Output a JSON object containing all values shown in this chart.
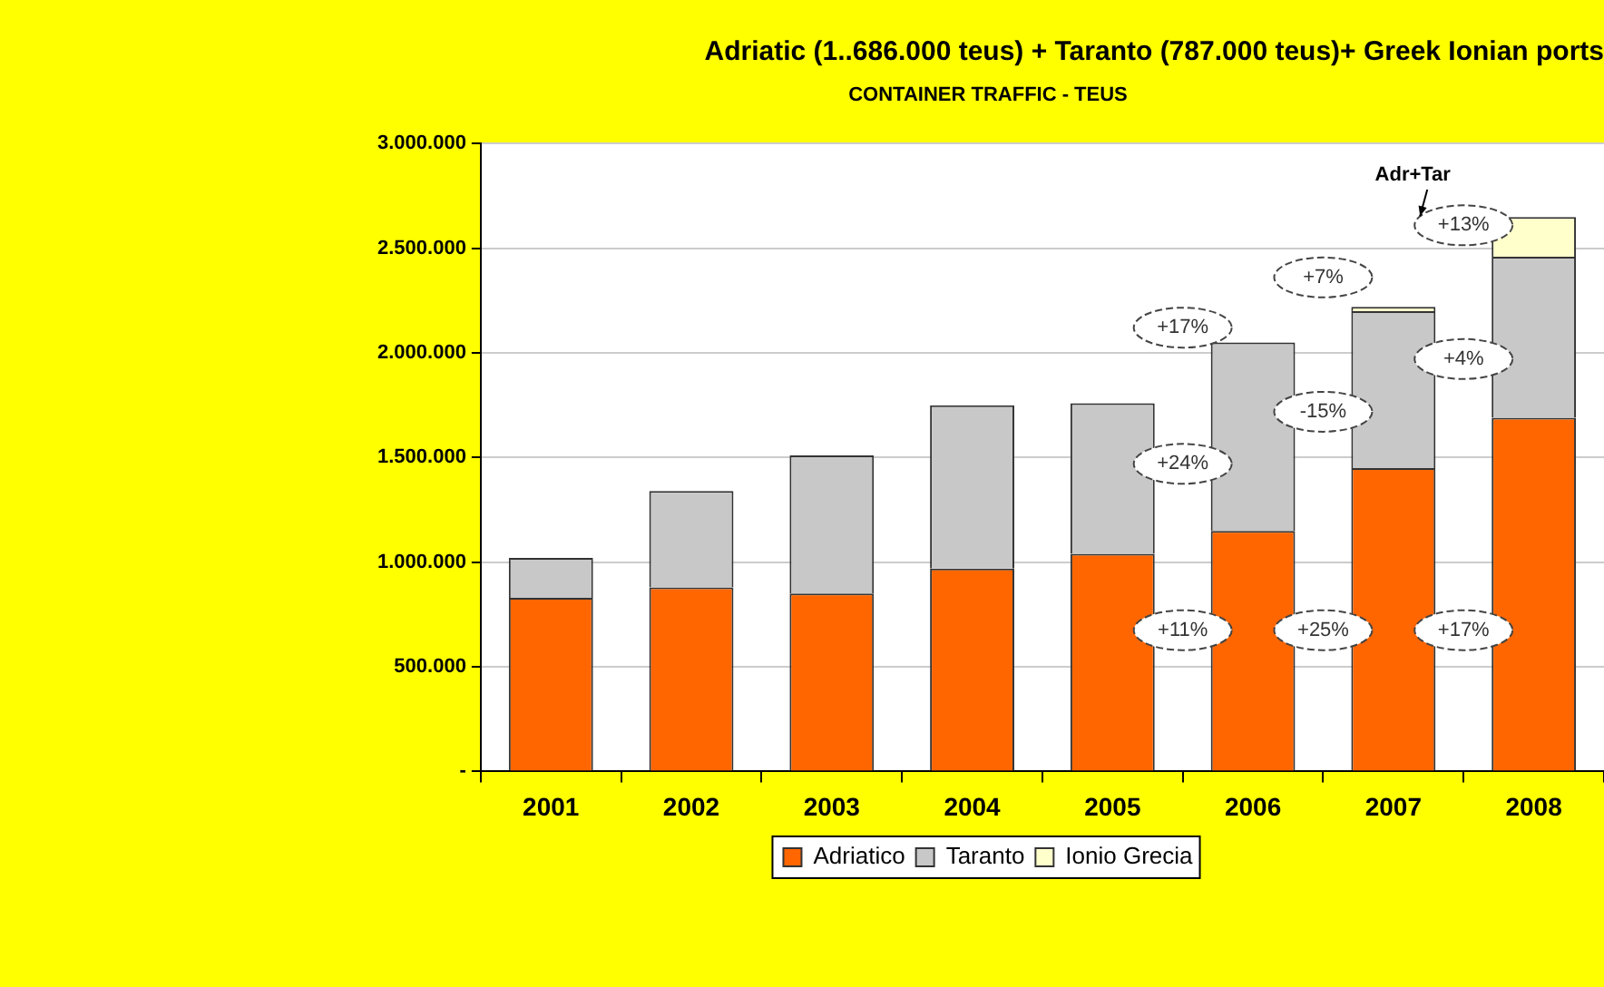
{
  "chart_data": {
    "type": "bar",
    "title": "Adriatic (1..686.000 teus) + Taranto (787.000 teus)+ Greek Ionian ports",
    "subtitle": "CONTAINER TRAFFIC - TEUS",
    "categories": [
      "2001",
      "2002",
      "2003",
      "2004",
      "2005",
      "2006",
      "2007",
      "2008"
    ],
    "stacked": true,
    "series": [
      {
        "name": "Adriatico",
        "color": "#ff6600",
        "values": [
          830000,
          880000,
          850000,
          970000,
          1040000,
          1150000,
          1450000,
          1690000
        ]
      },
      {
        "name": "Taranto",
        "color": "#c8c8c8",
        "values": [
          190000,
          460000,
          660000,
          780000,
          720000,
          900000,
          750000,
          770000
        ]
      },
      {
        "name": "Ionio Grecia",
        "color": "#ffffcc",
        "values": [
          null,
          null,
          null,
          null,
          null,
          null,
          20000,
          190000
        ]
      }
    ],
    "ylim": [
      0,
      3000000
    ],
    "yticks": [
      {
        "value": 0,
        "label": "-"
      },
      {
        "value": 500000,
        "label": "500.000"
      },
      {
        "value": 1000000,
        "label": "1.000.000"
      },
      {
        "value": 1500000,
        "label": "1.500.000"
      },
      {
        "value": 2000000,
        "label": "2.000.000"
      },
      {
        "value": 2500000,
        "label": "2.500.000"
      },
      {
        "value": 3000000,
        "label": "3.000.000"
      }
    ],
    "grid": "y",
    "legend": "bottom",
    "annotations": [
      "+11%",
      "+25%",
      "+17%",
      "+24%",
      "-15%",
      "+4%",
      "+17%",
      "+7%",
      "+13%",
      "Adr+Tar"
    ]
  }
}
